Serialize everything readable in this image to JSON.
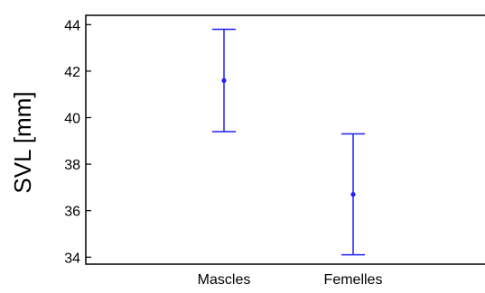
{
  "chart_data": {
    "type": "errorbar",
    "title": "",
    "xlabel": "",
    "ylabel": "SVL [mm]",
    "categories": [
      "Mascles",
      "Femelles"
    ],
    "series": [
      {
        "values": [
          41.6,
          36.7
        ],
        "lower": [
          39.4,
          34.1
        ],
        "upper": [
          43.8,
          39.3
        ]
      }
    ],
    "ylim": [
      33.7,
      44.4
    ],
    "yticks": [
      34,
      36,
      38,
      40,
      42,
      44
    ],
    "grid": false,
    "color": "#1f1fff"
  }
}
